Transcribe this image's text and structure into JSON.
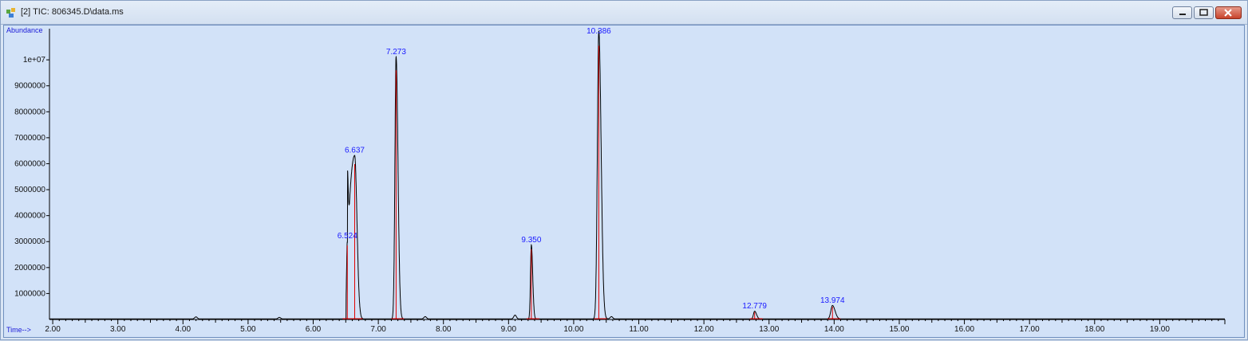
{
  "window": {
    "title": "[2] TIC: 806345.D\\data.ms",
    "buttons": [
      "minimize-icon",
      "restore-icon",
      "close-icon"
    ]
  },
  "colors": {
    "plot_bg": "#d2e2f8",
    "trace": "#000000",
    "baseline": "#e00000",
    "labels": "#1a1aff"
  },
  "chart_data": {
    "type": "line",
    "title": "[2] TIC: 806345.D\\data.ms",
    "ylabel": "Abundance",
    "xlabel": "Time-->",
    "xlim": [
      1.95,
      20.0
    ],
    "ylim": [
      0,
      11200000
    ],
    "x_ticks": [
      2,
      3,
      4,
      5,
      6,
      7,
      8,
      9,
      10,
      11,
      12,
      13,
      14,
      15,
      16,
      17,
      18,
      19
    ],
    "x_tick_labels": [
      "2.00",
      "3.00",
      "4.00",
      "5.00",
      "6.00",
      "7.00",
      "8.00",
      "9.00",
      "10.00",
      "11.00",
      "12.00",
      "13.00",
      "14.00",
      "15.00",
      "16.00",
      "17.00",
      "18.00",
      "19.00"
    ],
    "y_ticks": [
      1000000,
      2000000,
      3000000,
      4000000,
      5000000,
      6000000,
      7000000,
      8000000,
      9000000,
      10000000
    ],
    "y_tick_labels": [
      "1000000",
      "2000000",
      "3000000",
      "4000000",
      "5000000",
      "6000000",
      "7000000",
      "8000000",
      "9000000",
      "1e+07"
    ],
    "peaks": [
      {
        "rt": 6.524,
        "label": "6.524",
        "height": 3000000,
        "width": 0.02
      },
      {
        "rt": 6.637,
        "label": "6.637",
        "height": 6300000,
        "width": 0.09
      },
      {
        "rt": 7.273,
        "label": "7.273",
        "height": 10100000,
        "width": 0.018
      },
      {
        "rt": 9.35,
        "label": "9.350",
        "height": 2850000,
        "width": 0.013
      },
      {
        "rt": 10.386,
        "label": "10.386",
        "height": 11100000,
        "width": 0.022
      },
      {
        "rt": 12.779,
        "label": "12.779",
        "height": 300000,
        "width": 0.018
      },
      {
        "rt": 13.974,
        "label": "13.974",
        "height": 520000,
        "width": 0.025
      }
    ],
    "minor_peaks": [
      {
        "rt": 4.2,
        "height": 80000
      },
      {
        "rt": 5.48,
        "height": 60000
      },
      {
        "rt": 7.72,
        "height": 90000
      },
      {
        "rt": 9.1,
        "height": 150000
      },
      {
        "rt": 10.58,
        "height": 90000
      }
    ],
    "grid": false,
    "legend": "none"
  }
}
